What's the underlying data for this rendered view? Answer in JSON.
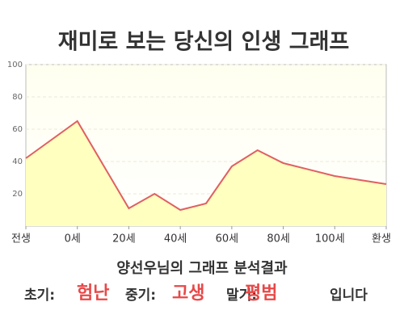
{
  "chart_data": {
    "type": "line",
    "title": "재미로 보는 당신의 인생 그래프",
    "x": [
      -20,
      0,
      20,
      30,
      40,
      50,
      60,
      70,
      80,
      100,
      120
    ],
    "series": [
      {
        "color": "#e06060",
        "values": [
          42,
          65,
          11,
          20,
          10,
          14,
          37,
          47,
          39,
          31,
          26
        ]
      }
    ],
    "xlim": [
      -20,
      120
    ],
    "xticks": [
      {
        "value": -20,
        "label": "전생"
      },
      {
        "value": 0,
        "label": "0세"
      },
      {
        "value": 20,
        "label": "20세"
      },
      {
        "value": 40,
        "label": "40세"
      },
      {
        "value": 60,
        "label": "60세"
      },
      {
        "value": 80,
        "label": "80세"
      },
      {
        "value": 100,
        "label": "100세"
      },
      {
        "value": 120,
        "label": "환생"
      }
    ],
    "ylim": [
      0,
      100
    ],
    "yticks": [
      20,
      40,
      60,
      80,
      100
    ],
    "grid": true,
    "fill_color": "#ffffc0"
  },
  "result": {
    "heading": "양선우님의 그래프 분석결과",
    "early_label": "초기:",
    "early": "험난",
    "middle_label": "중기:",
    "middle": "고생",
    "late_label": "말기:",
    "late": "평범",
    "ending": "입니다"
  }
}
